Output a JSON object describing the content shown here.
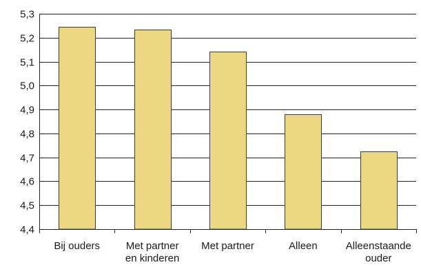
{
  "chart_data": {
    "type": "bar",
    "categories": [
      [
        "Bij ouders"
      ],
      [
        "Met partner",
        "en kinderen"
      ],
      [
        "Met partner"
      ],
      [
        "Alleen"
      ],
      [
        "Alleenstaande",
        "ouder"
      ]
    ],
    "values": [
      5.245,
      5.233,
      5.141,
      4.88,
      4.725
    ],
    "title": "",
    "xlabel": "",
    "ylabel": "",
    "ylim": [
      4.4,
      5.3
    ],
    "yticks": [
      "4,4",
      "4,5",
      "4,6",
      "4,7",
      "4,8",
      "4,9",
      "5,0",
      "5,1",
      "5,2",
      "5,3"
    ],
    "grid": true,
    "legend": "none",
    "colors": {
      "bar_fill": "#ecd882",
      "bar_stroke": "#3a3a3a",
      "grid": "#222222",
      "axis": "#222222"
    }
  }
}
